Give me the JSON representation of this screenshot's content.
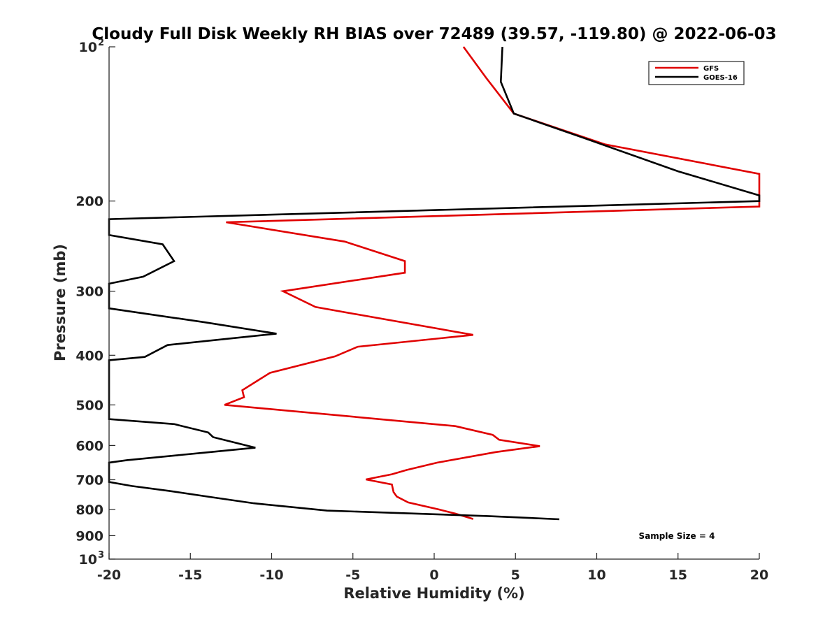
{
  "chart_data": {
    "type": "line",
    "title": "Cloudy Full Disk Weekly RH BIAS over 72489 (39.57, -119.80) @ 2022-06-03",
    "xlabel": "Relative Humidity (%)",
    "ylabel": "Pressure (mb)",
    "xlim": [
      -20,
      20
    ],
    "ylim": [
      100,
      1000
    ],
    "y_scale": "log",
    "y_reversed": true,
    "x_ticks": [
      "-20",
      "-15",
      "-10",
      "-5",
      "0",
      "5",
      "10",
      "15",
      "20"
    ],
    "y_ticks": [
      {
        "value": 100,
        "label": "10",
        "sup": "2"
      },
      {
        "value": 200,
        "label": "200",
        "sup": ""
      },
      {
        "value": 300,
        "label": "300",
        "sup": ""
      },
      {
        "value": 400,
        "label": "400",
        "sup": ""
      },
      {
        "value": 500,
        "label": "500",
        "sup": ""
      },
      {
        "value": 600,
        "label": "600",
        "sup": ""
      },
      {
        "value": 700,
        "label": "700",
        "sup": ""
      },
      {
        "value": 800,
        "label": "800",
        "sup": ""
      },
      {
        "value": 900,
        "label": "900",
        "sup": ""
      },
      {
        "value": 1000,
        "label": "10",
        "sup": "3"
      }
    ],
    "legend_position": "top-right",
    "annotation": "Sample Size = 4",
    "series": [
      {
        "name": "GFS",
        "color": "#e00000",
        "points": [
          [
            1.8,
            100
          ],
          [
            3.2,
            115
          ],
          [
            4.9,
            135
          ],
          [
            10.5,
            155
          ],
          [
            20,
            177
          ],
          [
            20,
            205
          ],
          [
            -12.8,
            220
          ],
          [
            -5.5,
            240
          ],
          [
            -1.8,
            262
          ],
          [
            -1.8,
            276
          ],
          [
            -9.3,
            300
          ],
          [
            -7.3,
            322
          ],
          [
            2.4,
            365
          ],
          [
            -4.7,
            385
          ],
          [
            -6.1,
            402
          ],
          [
            -10.1,
            433
          ],
          [
            -10.9,
            449
          ],
          [
            -11.8,
            468
          ],
          [
            -11.7,
            483
          ],
          [
            -12.9,
            500
          ],
          [
            1.3,
            550
          ],
          [
            3.6,
            572
          ],
          [
            4.0,
            585
          ],
          [
            6.5,
            602
          ],
          [
            3.8,
            618
          ],
          [
            0.2,
            648
          ],
          [
            -1.7,
            670
          ],
          [
            -2.6,
            683
          ],
          [
            -4.2,
            699
          ],
          [
            -2.6,
            715
          ],
          [
            -2.5,
            740
          ],
          [
            -2.3,
            755
          ],
          [
            -1.6,
            775
          ],
          [
            0.3,
            800
          ],
          [
            1.3,
            815
          ],
          [
            2.4,
            835
          ]
        ]
      },
      {
        "name": "GOES-16",
        "color": "#000000",
        "points": [
          [
            4.2,
            100
          ],
          [
            4.1,
            117
          ],
          [
            4.9,
            135
          ],
          [
            9.3,
            151
          ],
          [
            15.0,
            175
          ],
          [
            20,
            195
          ],
          [
            20,
            200
          ],
          [
            -20,
            217
          ],
          [
            -20,
            233
          ],
          [
            -16.7,
            243
          ],
          [
            -16.0,
            262
          ],
          [
            -17.9,
            281
          ],
          [
            -20,
            290
          ],
          [
            -20,
            324
          ],
          [
            -14.1,
            345
          ],
          [
            -9.7,
            363
          ],
          [
            -16.4,
            382
          ],
          [
            -17.8,
            403
          ],
          [
            -20,
            409
          ],
          [
            -20,
            533
          ],
          [
            -16.0,
            545
          ],
          [
            -13.9,
            566
          ],
          [
            -13.6,
            578
          ],
          [
            -11.0,
            606
          ],
          [
            -14.2,
            620
          ],
          [
            -18.9,
            641
          ],
          [
            -20,
            648
          ],
          [
            -20,
            707
          ],
          [
            -18.6,
            720
          ],
          [
            -16.3,
            736
          ],
          [
            -13.7,
            757
          ],
          [
            -11.1,
            778
          ],
          [
            -6.6,
            804
          ],
          [
            3.3,
            824
          ],
          [
            7.7,
            836
          ]
        ]
      }
    ]
  }
}
